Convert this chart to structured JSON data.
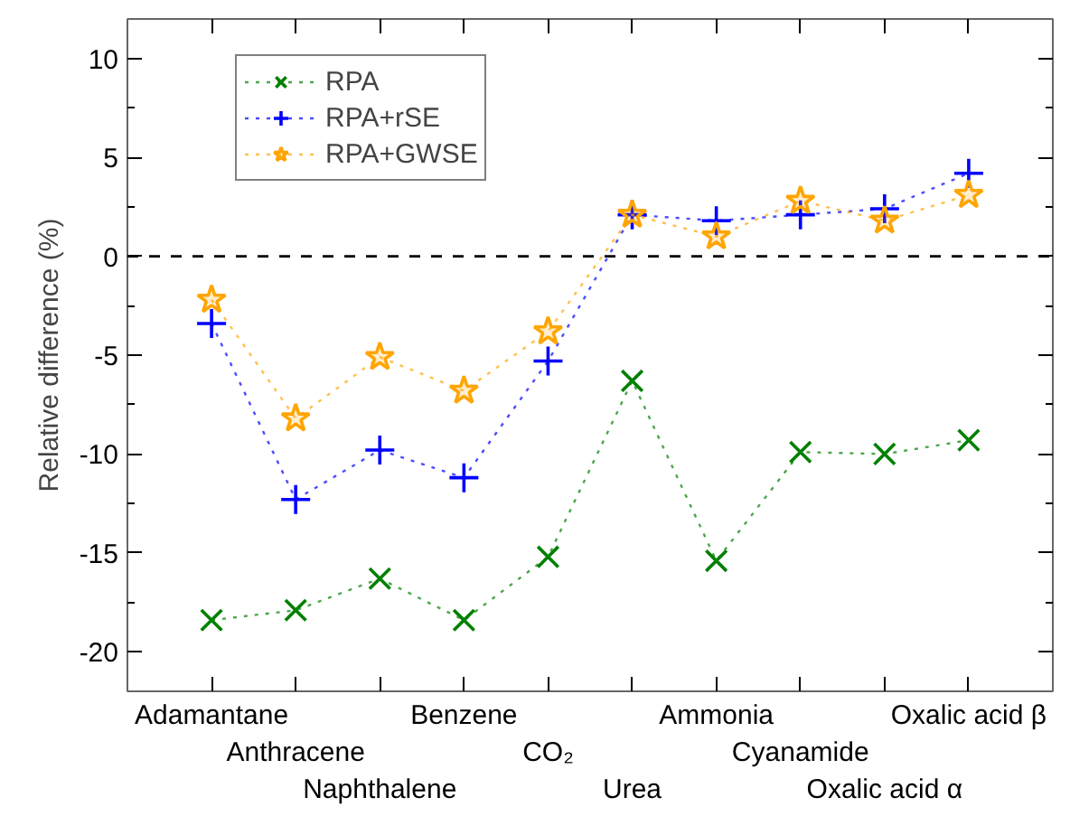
{
  "chart_data": {
    "type": "line",
    "ylabel": "Relative difference (%)",
    "categories": [
      "Adamantane",
      "Anthracene",
      "Naphthalene",
      "Benzene",
      "CO₂",
      "Urea",
      "Ammonia",
      "Cyanamide",
      "Oxalic acid α",
      "Oxalic acid β"
    ],
    "series": [
      {
        "name": "RPA",
        "color": "#008000",
        "marker": "x",
        "values": [
          -18.4,
          -17.9,
          -16.3,
          -18.4,
          -15.2,
          -6.3,
          -15.4,
          -9.9,
          -10.0,
          -9.3
        ]
      },
      {
        "name": "RPA+rSE",
        "color": "#0000ff",
        "marker": "cross",
        "values": [
          -3.4,
          -12.3,
          -9.8,
          -11.2,
          -5.3,
          2.1,
          1.8,
          2.1,
          2.4,
          4.2
        ]
      },
      {
        "name": "RPA+GWSE",
        "color": "#ffa500",
        "marker": "star",
        "values": [
          -2.2,
          -8.2,
          -5.1,
          -6.8,
          -3.8,
          2.1,
          1.0,
          2.8,
          1.8,
          3.1
        ]
      }
    ],
    "ylim": [
      -22,
      12
    ],
    "yticks": [
      -20,
      -15,
      -10,
      -5,
      0,
      5,
      10
    ],
    "ref_lines": [
      {
        "axis": "y",
        "value": 0,
        "color": "#000000",
        "line_style": "dashed"
      }
    ],
    "line_style": "dotted",
    "legend": "top left",
    "grid": false
  }
}
